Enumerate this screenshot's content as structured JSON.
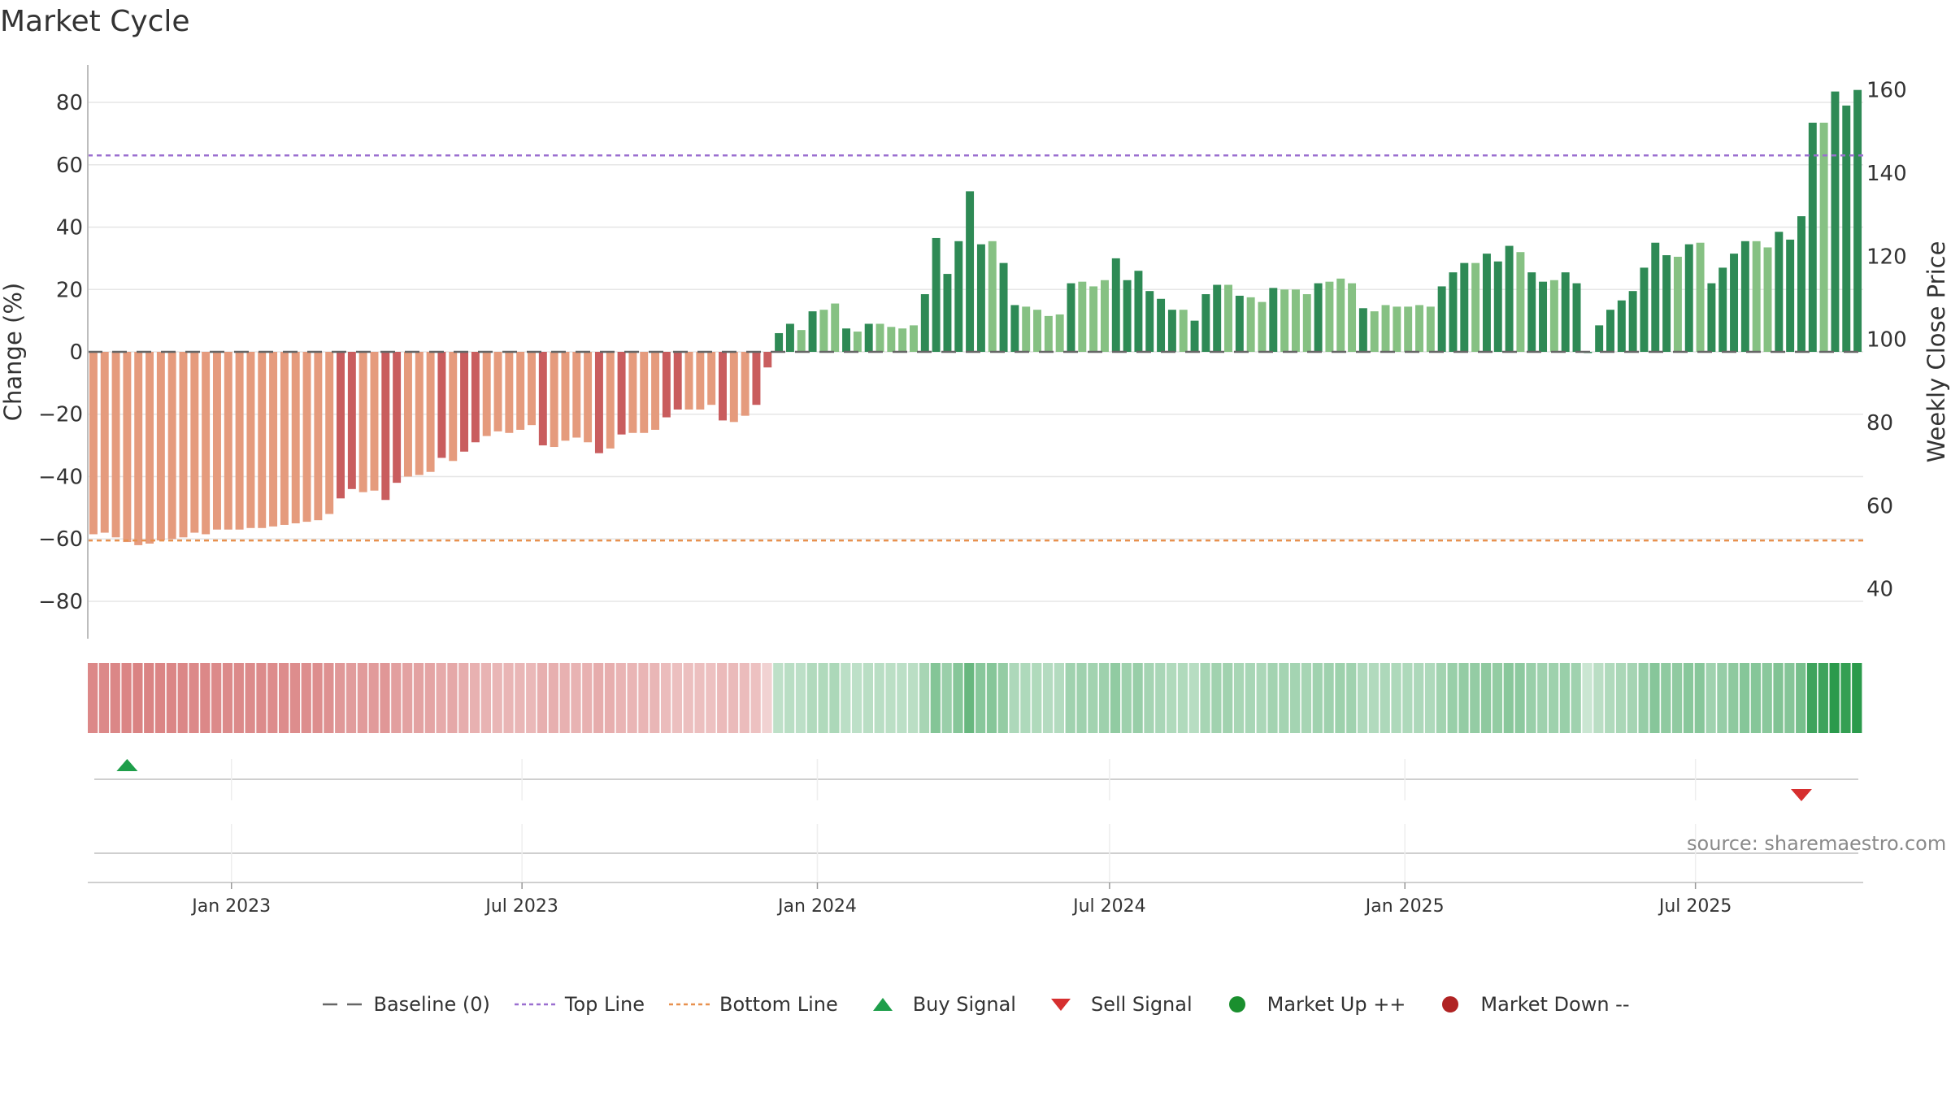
{
  "title": "Market Cycle",
  "source": "source: sharemaestro.com",
  "chart_data": {
    "type": "bar",
    "title": "Market Cycle",
    "ylabel_left": "Change (%)",
    "ylabel_right": "Weekly Close Price",
    "ylim_left": [
      -92,
      92
    ],
    "ylim_right": [
      28,
      166
    ],
    "yticks_left": [
      "80",
      "60",
      "40",
      "20",
      "0",
      "−20",
      "−40",
      "−60",
      "−80"
    ],
    "yticks_left_values": [
      80,
      60,
      40,
      20,
      0,
      -20,
      -40,
      -60,
      -80
    ],
    "yticks_right": [
      "160",
      "140",
      "120",
      "100",
      "80",
      "60",
      "40"
    ],
    "yticks_right_values": [
      160,
      140,
      120,
      100,
      80,
      60,
      40
    ],
    "x_start": "2022-10-07",
    "x_step_days": 7,
    "xticks": [
      "Jan 2023",
      "Jul 2023",
      "Jan 2024",
      "Jul 2024",
      "Jan 2025",
      "Jul 2025"
    ],
    "xticks_dates": [
      "2023-01-01",
      "2023-07-01",
      "2024-01-01",
      "2024-07-01",
      "2025-01-01",
      "2025-07-01"
    ],
    "top_line": 63,
    "bottom_line": -60.5,
    "baseline": 0,
    "values": [
      -58.5,
      -58,
      -59.5,
      -61,
      -62,
      -61.5,
      -60.5,
      -60,
      -59.5,
      -58,
      -58.5,
      -57,
      -57,
      -57,
      -56.5,
      -56.5,
      -56,
      -55.5,
      -55,
      -54.5,
      -54,
      -52,
      -47,
      -44,
      -45,
      -44.5,
      -47.5,
      -42,
      -40,
      -39.5,
      -38.5,
      -34,
      -35,
      -32,
      -29,
      -27,
      -25.5,
      -26,
      -25,
      -23.5,
      -30,
      -30.5,
      -28.5,
      -27.5,
      -29,
      -32.5,
      -31,
      -26.5,
      -26,
      -26,
      -25,
      -21,
      -18.5,
      -18.5,
      -18.5,
      -17,
      -22,
      -22.5,
      -20.5,
      -17,
      -5,
      6,
      9,
      7,
      13,
      13.5,
      15.5,
      7.5,
      6.5,
      9,
      9,
      8,
      7.5,
      8.5,
      18.5,
      36.5,
      25,
      35.5,
      51.5,
      34.5,
      35.5,
      28.5,
      15,
      14.5,
      13.5,
      11.5,
      12,
      22,
      22.5,
      21,
      23,
      30,
      23,
      26,
      19.5,
      17,
      13.5,
      13.5,
      10,
      18.5,
      21.5,
      21.5,
      18,
      17.5,
      16,
      20.5,
      20,
      20,
      18.5,
      22,
      22.5,
      23.5,
      22,
      14,
      13,
      15,
      14.5,
      14.5,
      15,
      14.5,
      21,
      25.5,
      28.5,
      28.5,
      31.5,
      29,
      34,
      32,
      25.5,
      22.5,
      23,
      25.5,
      22,
      0,
      8.5,
      13.5,
      16.5,
      19.5,
      27,
      35,
      31,
      30.5,
      34.5,
      35,
      22,
      27,
      31.5,
      35.5,
      35.5,
      33.5,
      38.5,
      36,
      43.5,
      73.5,
      73.5,
      83.5,
      79,
      84
    ],
    "strong_change_threshold": 2.5,
    "colors": {
      "strong_down": "#c95d5e",
      "weak_down": "#e59b7d",
      "strong_up": "#2e8a55",
      "weak_up": "#86c183",
      "heat_down": "#c94a4a",
      "heat_up": "#2a9a4b",
      "top_line": "#9b6fd0",
      "bottom_line": "#e8914f",
      "baseline": "#666666",
      "buy": "#1e9e4a",
      "sell": "#d62f2f",
      "market_up": "#1a8f2e",
      "market_down": "#b02323",
      "grid": "#e6e6e6"
    },
    "signals": {
      "buy": [
        {
          "date": "2022-10-28"
        }
      ],
      "sell": [
        {
          "date": "2025-09-05"
        }
      ]
    },
    "legend": [
      {
        "key": "baseline",
        "label": "Baseline (0)"
      },
      {
        "key": "top",
        "label": "Top Line"
      },
      {
        "key": "bottom",
        "label": "Bottom Line"
      },
      {
        "key": "buy",
        "label": "Buy Signal"
      },
      {
        "key": "sell",
        "label": "Sell Signal"
      },
      {
        "key": "up",
        "label": "Market Up ++"
      },
      {
        "key": "down",
        "label": "Market Down --"
      }
    ]
  }
}
